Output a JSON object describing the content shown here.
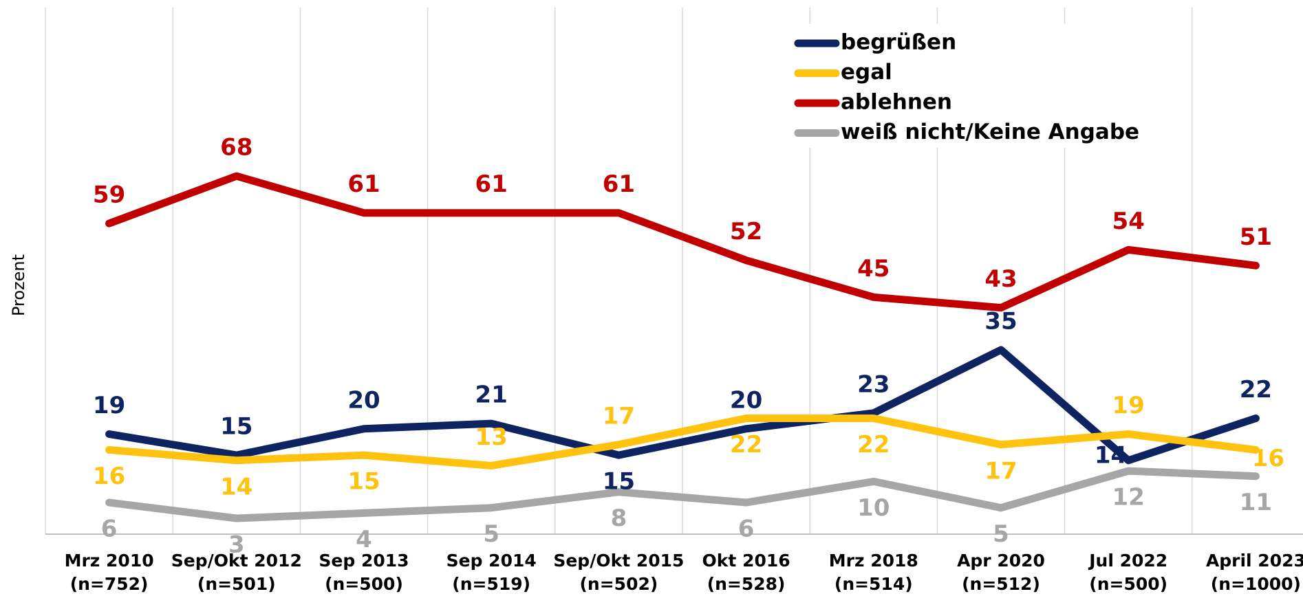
{
  "chart_data": {
    "type": "line",
    "y_label": "Prozent",
    "categories": [
      [
        "Mrz 2010",
        "(n=752)"
      ],
      [
        "Sep/Okt 2012",
        "(n=501)"
      ],
      [
        "Sep 2013",
        "(n=500)"
      ],
      [
        "Sep 2014",
        "(n=519)"
      ],
      [
        "Sep/Okt 2015",
        "(n=502)"
      ],
      [
        "Okt 2016",
        "(n=528)"
      ],
      [
        "Mrz 2018",
        "(n=514)"
      ],
      [
        "Apr 2020",
        "(n=512)"
      ],
      [
        "Jul 2022",
        "(n=500)"
      ],
      [
        "April 2023",
        "(n=1000)"
      ]
    ],
    "series": [
      {
        "name": "begrüßen",
        "color": "#0d2460",
        "values": [
          19,
          15,
          20,
          21,
          15,
          20,
          23,
          35,
          14,
          22
        ]
      },
      {
        "name": "egal",
        "color": "#ffc20e",
        "values": [
          16,
          14,
          15,
          13,
          17,
          22,
          22,
          17,
          19,
          16
        ]
      },
      {
        "name": "ablehnen",
        "color": "#c00000",
        "values": [
          59,
          68,
          61,
          61,
          61,
          52,
          45,
          43,
          54,
          51
        ]
      },
      {
        "name": "weiß nicht/Keine Angabe",
        "color": "#a6a6a6",
        "values": [
          6,
          3,
          4,
          5,
          8,
          6,
          10,
          5,
          12,
          11
        ]
      }
    ],
    "ylim": [
      0,
      100
    ],
    "grid": "vertical",
    "legend": "top-right"
  }
}
